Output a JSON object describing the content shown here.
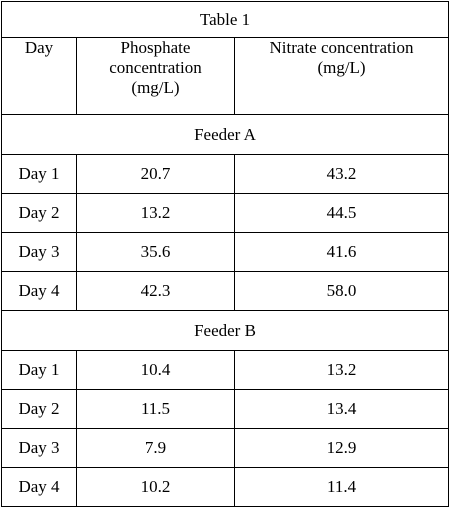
{
  "table": {
    "title": "Table 1",
    "headers": {
      "day": "Day",
      "phosphate": [
        "Phosphate",
        "concentration",
        "(mg/L)"
      ],
      "nitrate": [
        "Nitrate concentration",
        "(mg/L)"
      ]
    },
    "groups": [
      {
        "name": "Feeder A",
        "rows": [
          {
            "day": "Day 1",
            "phosphate": "20.7",
            "nitrate": "43.2"
          },
          {
            "day": "Day 2",
            "phosphate": "13.2",
            "nitrate": "44.5"
          },
          {
            "day": "Day 3",
            "phosphate": "35.6",
            "nitrate": "41.6"
          },
          {
            "day": "Day 4",
            "phosphate": "42.3",
            "nitrate": "58.0"
          }
        ]
      },
      {
        "name": "Feeder B",
        "rows": [
          {
            "day": "Day 1",
            "phosphate": "10.4",
            "nitrate": "13.2"
          },
          {
            "day": "Day 2",
            "phosphate": "11.5",
            "nitrate": "13.4"
          },
          {
            "day": "Day 3",
            "phosphate": "7.9",
            "nitrate": "12.9"
          },
          {
            "day": "Day 4",
            "phosphate": "10.2",
            "nitrate": "11.4"
          }
        ]
      }
    ]
  },
  "chart_data": {
    "type": "table",
    "title": "Table 1",
    "columns": [
      "Day",
      "Phosphate concentration (mg/L)",
      "Nitrate concentration (mg/L)"
    ],
    "groups": [
      {
        "name": "Feeder A",
        "rows": [
          [
            "Day 1",
            20.7,
            43.2
          ],
          [
            "Day 2",
            13.2,
            44.5
          ],
          [
            "Day 3",
            35.6,
            41.6
          ],
          [
            "Day 4",
            42.3,
            58.0
          ]
        ]
      },
      {
        "name": "Feeder B",
        "rows": [
          [
            "Day 1",
            10.4,
            13.2
          ],
          [
            "Day 2",
            11.5,
            13.4
          ],
          [
            "Day 3",
            7.9,
            12.9
          ],
          [
            "Day 4",
            10.2,
            11.4
          ]
        ]
      }
    ]
  }
}
